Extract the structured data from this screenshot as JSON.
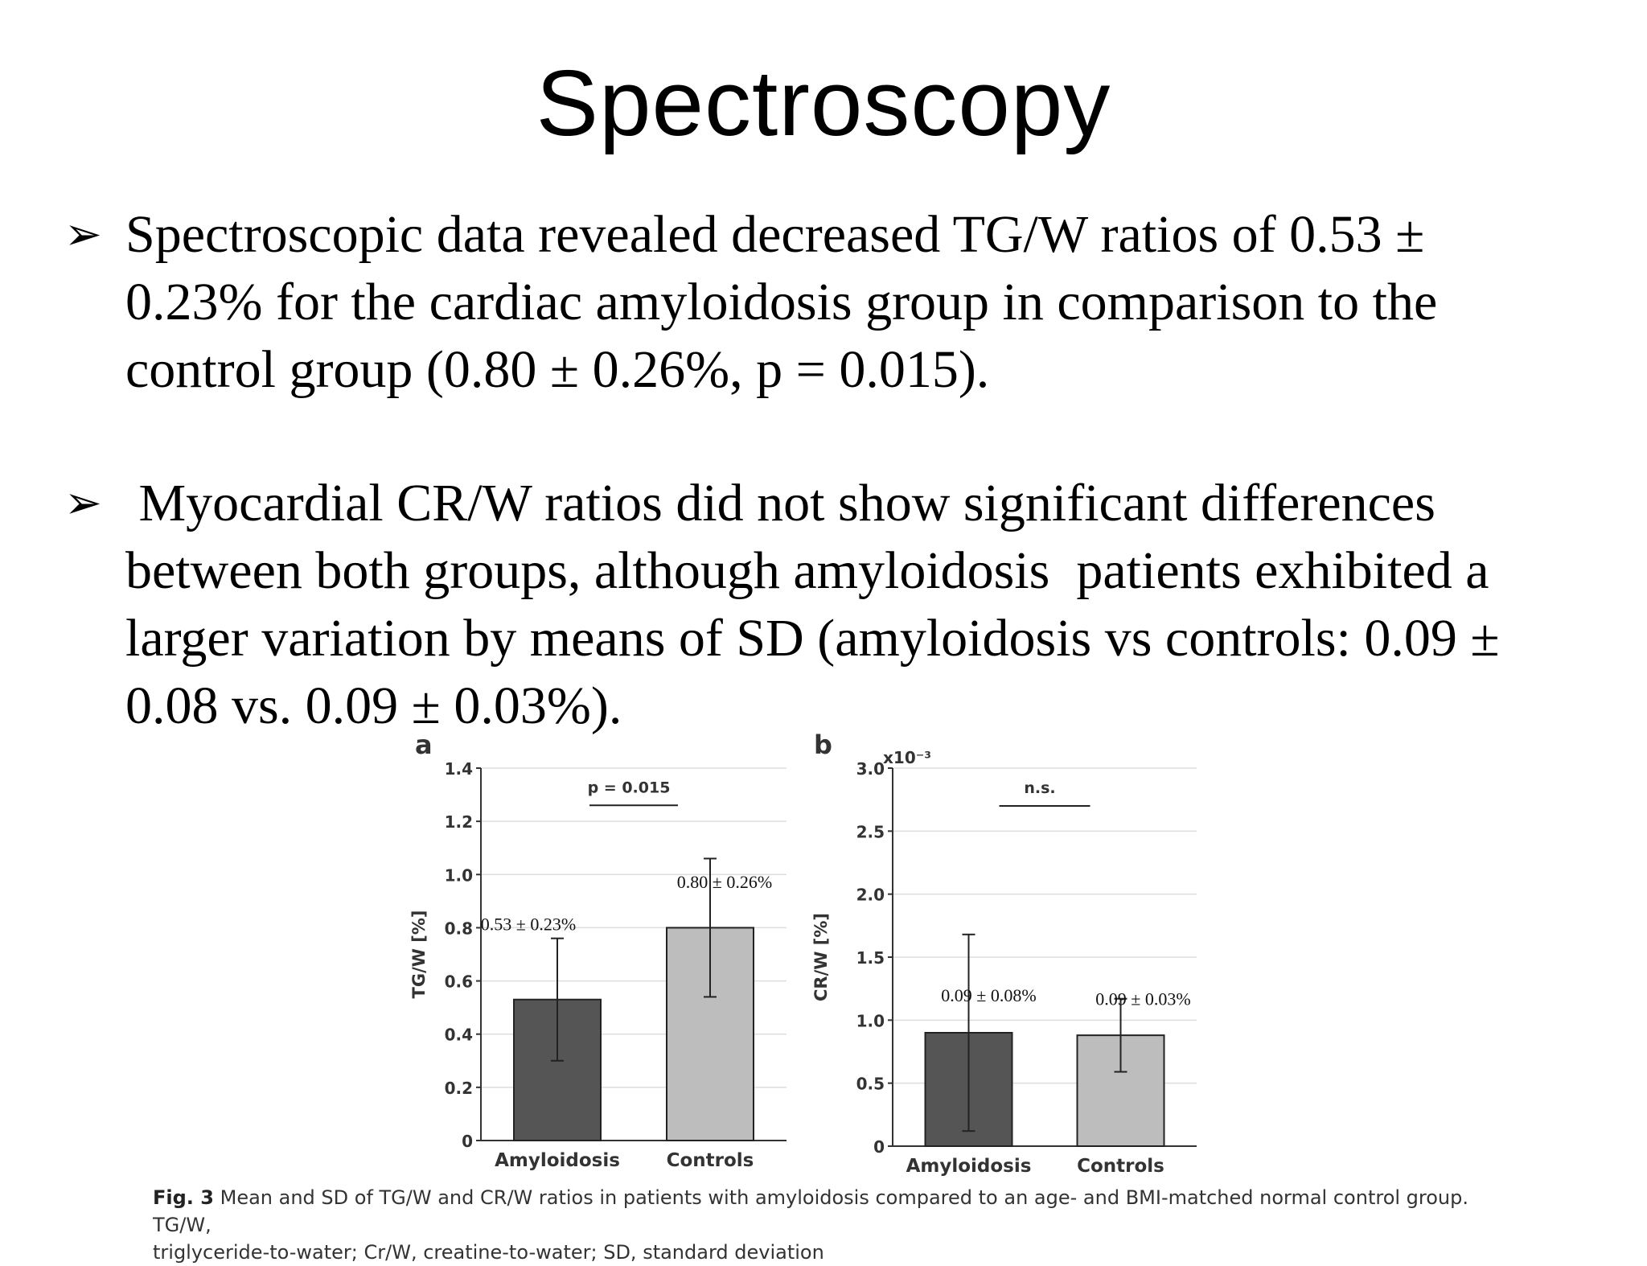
{
  "slide": {
    "title": "Spectroscopy",
    "bullet_marker": "➢",
    "bullets": [
      {
        "lines": [
          "Spectroscopic data revealed decreased TG/W ratios of 0.53 ±",
          "0.23% for the cardiac amyloidosis group in comparison to the",
          "control group (0.80 ± 0.26%, p = 0.015)."
        ]
      },
      {
        "lines": [
          " Myocardial CR/W ratios did not show significant differences",
          "between both groups, although amyloidosis  patients exhibited a",
          "larger variation by means of SD (amyloidosis vs controls: 0.09 ±",
          "0.08 vs. 0.09 ± 0.03%)."
        ]
      }
    ]
  },
  "caption": {
    "label": "Fig. 3",
    "text": " Mean and SD of TG/W and CR/W ratios in patients with amyloidosis compared to an age- and BMI-matched normal control group. TG/W,",
    "text2": "triglyceride-to-water; Cr/W, creatine-to-water; SD, standard deviation"
  },
  "chart_data": [
    {
      "type": "bar",
      "panel_label": "a",
      "categories": [
        "Amyloidosis",
        "Controls"
      ],
      "values": [
        0.53,
        0.8
      ],
      "errors": [
        0.23,
        0.26
      ],
      "value_labels": [
        "0.53 ± 0.23%",
        "0.80 ± 0.26%"
      ],
      "colors": [
        "#555555",
        "#bdbdbd"
      ],
      "ylabel": "TG/W [%]",
      "ylim": [
        0,
        1.4
      ],
      "yticks": [
        0,
        0.2,
        0.4,
        0.6,
        0.8,
        1.0,
        1.2,
        1.4
      ],
      "ytick_labels": [
        "0",
        "0.2",
        "0.4",
        "0.6",
        "0.8",
        "1.0",
        "1.2",
        "1.4"
      ],
      "significance": "p = 0.015",
      "significance_level": 1.26,
      "grid": true
    },
    {
      "type": "bar",
      "panel_label": "b",
      "scale_label": "x10⁻³",
      "categories": [
        "Amyloidosis",
        "Controls"
      ],
      "values": [
        0.9,
        0.88
      ],
      "errors": [
        0.78,
        0.29
      ],
      "value_labels": [
        "0.09 ± 0.08%",
        "0.09 ± 0.03%"
      ],
      "colors": [
        "#555555",
        "#bdbdbd"
      ],
      "ylabel": "CR/W [%]",
      "ylim": [
        0,
        3.0
      ],
      "yticks": [
        0,
        0.5,
        1.0,
        1.5,
        2.0,
        2.5,
        3.0
      ],
      "ytick_labels": [
        "0",
        "0.5",
        "1.0",
        "1.5",
        "2.0",
        "2.5",
        "3.0"
      ],
      "significance": "n.s.",
      "significance_level": 2.7,
      "grid": true
    }
  ]
}
